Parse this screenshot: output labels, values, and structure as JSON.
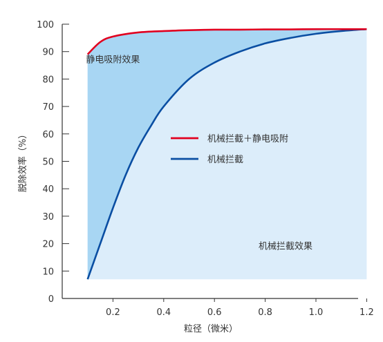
{
  "chart_data": {
    "type": "line",
    "xlabel": "粒径（微米）",
    "ylabel": "脱除效率（%）",
    "xlim": [
      0.1,
      1.2
    ],
    "ylim": [
      0,
      100
    ],
    "x_ticks": [
      "0.2",
      "0.4",
      "0.6",
      "0.8",
      "1.0",
      "1.2"
    ],
    "y_ticks": [
      "0",
      "10",
      "20",
      "30",
      "40",
      "50",
      "60",
      "70",
      "80",
      "90",
      "100"
    ],
    "legend_position": "center-right",
    "series": [
      {
        "name": "机械拦截＋静电吸附",
        "color": "#e1001f",
        "x": [
          0.1,
          0.15,
          0.2,
          0.3,
          0.4,
          0.5,
          0.6,
          0.7,
          0.8,
          0.9,
          1.0,
          1.1,
          1.2
        ],
        "y": [
          89,
          93.5,
          95.5,
          97,
          97.5,
          97.8,
          98,
          98,
          98.1,
          98.1,
          98.2,
          98.2,
          98.2
        ]
      },
      {
        "name": "机械拦截",
        "color": "#0a4ea2",
        "x": [
          0.1,
          0.15,
          0.2,
          0.25,
          0.3,
          0.35,
          0.4,
          0.5,
          0.6,
          0.7,
          0.8,
          0.9,
          1.0,
          1.1,
          1.2
        ],
        "y": [
          7,
          20,
          33,
          45,
          55,
          63,
          70,
          80,
          86,
          90,
          93,
          95,
          96.5,
          97.5,
          98.2
        ]
      }
    ],
    "fills": {
      "between_color": "#a8d6f3",
      "below_color": "#dcedfa"
    },
    "annotations": [
      {
        "text": "静电吸附效果",
        "x": 0.2,
        "y": 86
      },
      {
        "text": "机械拦截效果",
        "x": 0.88,
        "y": 18
      }
    ]
  }
}
